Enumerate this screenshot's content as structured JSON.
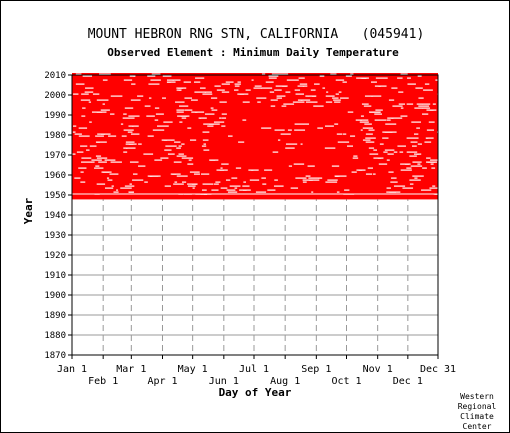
{
  "chart_data": {
    "type": "heatmap",
    "title": "MOUNT HEBRON RNG STN, CALIFORNIA   (045941)",
    "subtitle": "Observed Element : Minimum Daily Temperature",
    "xlabel": "Day of Year",
    "ylabel": "Year",
    "ylim": [
      1870,
      2010
    ],
    "yticks": [
      1870,
      1880,
      1890,
      1900,
      1910,
      1920,
      1930,
      1940,
      1950,
      1960,
      1970,
      1980,
      1990,
      2000,
      2010
    ],
    "xlim": [
      1,
      365
    ],
    "xticks_upper": [
      {
        "label": "Jan 1",
        "day": 1
      },
      {
        "label": "Mar 1",
        "day": 60
      },
      {
        "label": "May 1",
        "day": 121
      },
      {
        "label": "Jul 1",
        "day": 182
      },
      {
        "label": "Sep 1",
        "day": 244
      },
      {
        "label": "Nov 1",
        "day": 305
      },
      {
        "label": "Dec 31",
        "day": 365
      }
    ],
    "xticks_lower": [
      {
        "label": "Feb 1",
        "day": 32
      },
      {
        "label": "Apr 1",
        "day": 91
      },
      {
        "label": "Jun 1",
        "day": 152
      },
      {
        "label": "Aug 1",
        "day": 213
      },
      {
        "label": "Oct 1",
        "day": 274
      },
      {
        "label": "Dec 1",
        "day": 335
      }
    ],
    "data_years": [
      1948,
      2010
    ],
    "color": "#ff0000",
    "grid": true
  },
  "credit": [
    "Western",
    "Regional",
    "Climate",
    "Center"
  ]
}
